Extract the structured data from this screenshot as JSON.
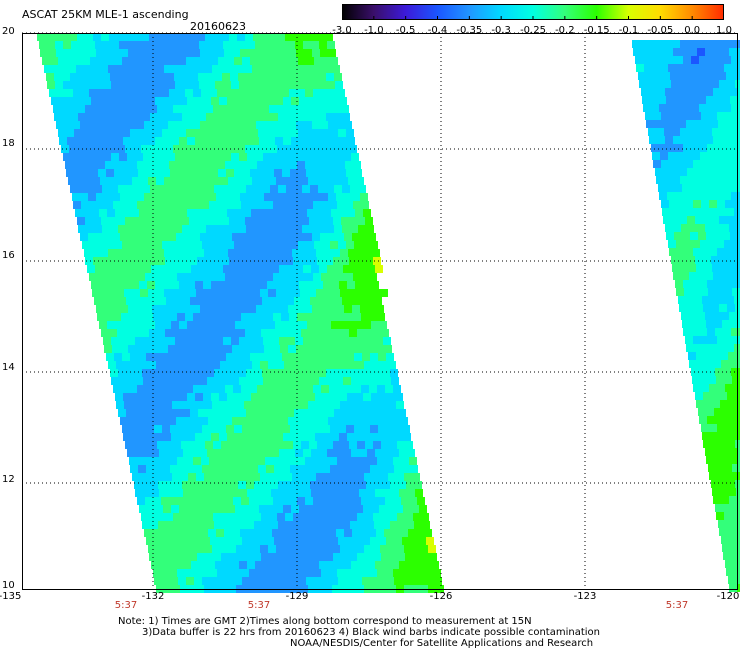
{
  "title": "ASCAT 25KM MLE-1 ascending",
  "date": "20160623",
  "colorbar": {
    "ticks": [
      "-3.0",
      "-1.0",
      "-0.5",
      "-0.4",
      "-0.35",
      "-0.3",
      "-0.25",
      "-0.2",
      "-0.15",
      "-0.1",
      "-0.05",
      "0.0",
      "1.0"
    ],
    "colors": [
      "#000000",
      "#3a0f6a",
      "#3c1ad9",
      "#1b56ff",
      "#2196ff",
      "#00d9ff",
      "#00ffe1",
      "#33ff7a",
      "#2cff00",
      "#d8ff00",
      "#ffdc00",
      "#ff8a00",
      "#ff2a00"
    ]
  },
  "map": {
    "lat_labels": [
      "20",
      "18",
      "16",
      "14",
      "12",
      "10"
    ],
    "lon_labels": [
      "-135",
      "-132",
      "-129",
      "-126",
      "-123",
      "-120"
    ],
    "time_labels": [
      "5:37",
      "5:37",
      "5:37"
    ]
  },
  "notes": [
    "Note: 1) Times are GMT 2)Times along bottom correspond to measurement at 15N",
    "3)Data buffer is 22 hrs from 20160623 4) Black wind barbs indicate possible contamination",
    "NOAA/NESDIS/Center for Satellite Applications and Research"
  ]
}
